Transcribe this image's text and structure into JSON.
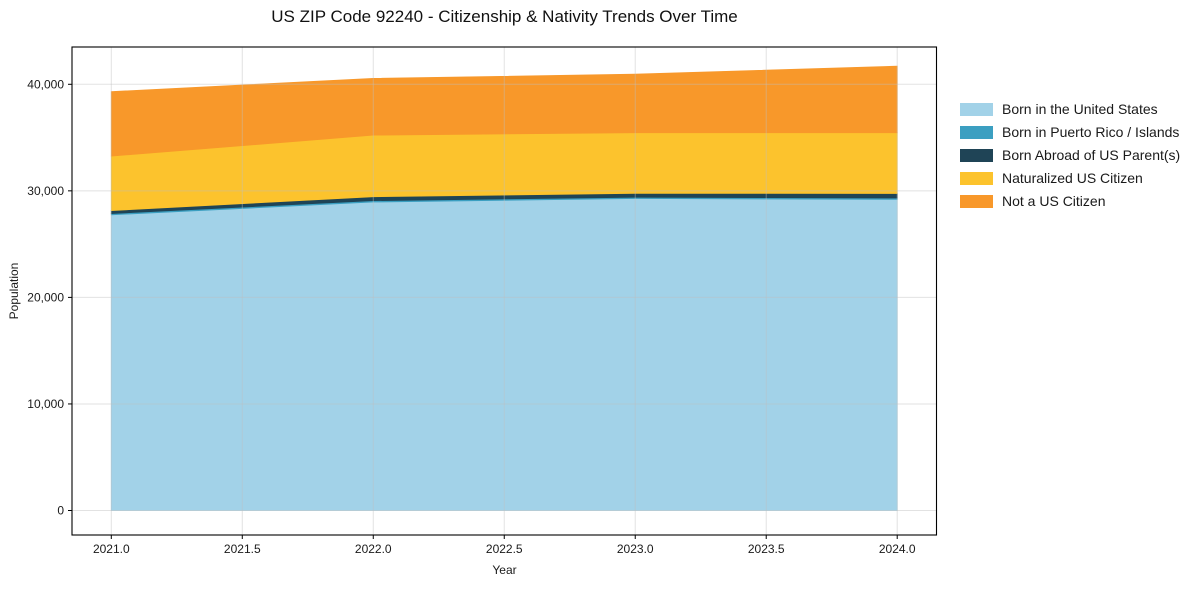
{
  "chart_data": {
    "type": "area",
    "stacked": true,
    "title": "US ZIP Code 92240 - Citizenship & Nativity Trends Over Time",
    "xlabel": "Year",
    "ylabel": "Population",
    "x": [
      2021,
      2022,
      2023,
      2024
    ],
    "series": [
      {
        "name": "Born in the United States",
        "color": "#a2d2e8",
        "values": [
          27750,
          28950,
          29280,
          29200
        ]
      },
      {
        "name": "Born in Puerto Rico / Islands",
        "color": "#3b9fc1",
        "values": [
          120,
          130,
          120,
          130
        ]
      },
      {
        "name": "Born Abroad of US Parent(s)",
        "color": "#1f4456",
        "values": [
          280,
          370,
          370,
          420
        ]
      },
      {
        "name": "Naturalized US Citizen",
        "color": "#fcc32d",
        "values": [
          5110,
          5780,
          5680,
          5700
        ]
      },
      {
        "name": "Not a US Citizen",
        "color": "#f8982a",
        "values": [
          6050,
          5320,
          5500,
          6250
        ]
      }
    ],
    "totals": [
      39310,
      40550,
      40950,
      41700
    ],
    "xticks": [
      2021.0,
      2021.5,
      2022.0,
      2022.5,
      2023.0,
      2023.5,
      2024.0
    ],
    "xtick_labels": [
      "2021.0",
      "2021.5",
      "2022.0",
      "2022.5",
      "2023.0",
      "2023.5",
      "2024.0"
    ],
    "yticks": [
      0,
      10000,
      20000,
      30000,
      40000
    ],
    "ytick_labels": [
      "0",
      "10,000",
      "20,000",
      "30,000",
      "40,000"
    ],
    "xlim": [
      2020.85,
      2024.15
    ],
    "ylim": [
      -2300,
      43500
    ],
    "grid": true,
    "grid_color": "#bebebe",
    "spine_color": "#000000",
    "legend_position": "right-outside"
  }
}
